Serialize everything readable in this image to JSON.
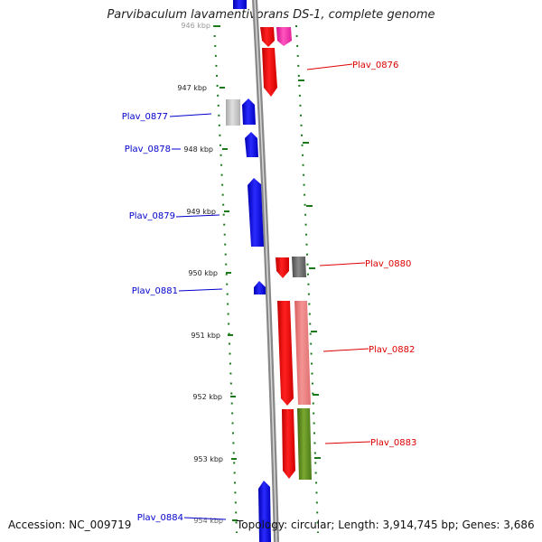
{
  "title": "Parvibaculum lavamentivorans DS-1, complete genome",
  "footer": {
    "accession": "Accession: NC_009719",
    "topology": "Topology: circular; Length: 3,914,745 bp; Genes: 3,686"
  },
  "colors": {
    "backbone": "#888888",
    "tick": "#1a7a1a",
    "label_minus": "#0000cc",
    "label_plus": "#dd0000",
    "blue": "#0000ee",
    "red": "#ff0000",
    "pink": "#f07a7a",
    "grey": "#777777",
    "lightgrey": "#c8c8c8",
    "magenta": "#ff33aa",
    "olive": "#5c8c1a"
  },
  "scale_labels": [
    "946 kbp",
    "947 kbp",
    "948 kbp",
    "949 kbp",
    "950 kbp",
    "951 kbp",
    "952 kbp",
    "953 kbp",
    "954 kbp"
  ],
  "gene_labels": [
    {
      "text": "Plav_0876",
      "strand": "plus"
    },
    {
      "text": "Plav_0877",
      "strand": "minus"
    },
    {
      "text": "Plav_0878",
      "strand": "minus"
    },
    {
      "text": "Plav_0879",
      "strand": "minus"
    },
    {
      "text": "Plav_0880",
      "strand": "plus"
    },
    {
      "text": "Plav_0881",
      "strand": "minus"
    },
    {
      "text": "Plav_0882",
      "strand": "plus"
    },
    {
      "text": "Plav_0883",
      "strand": "plus"
    },
    {
      "text": "Plav_0884",
      "strand": "minus"
    }
  ]
}
